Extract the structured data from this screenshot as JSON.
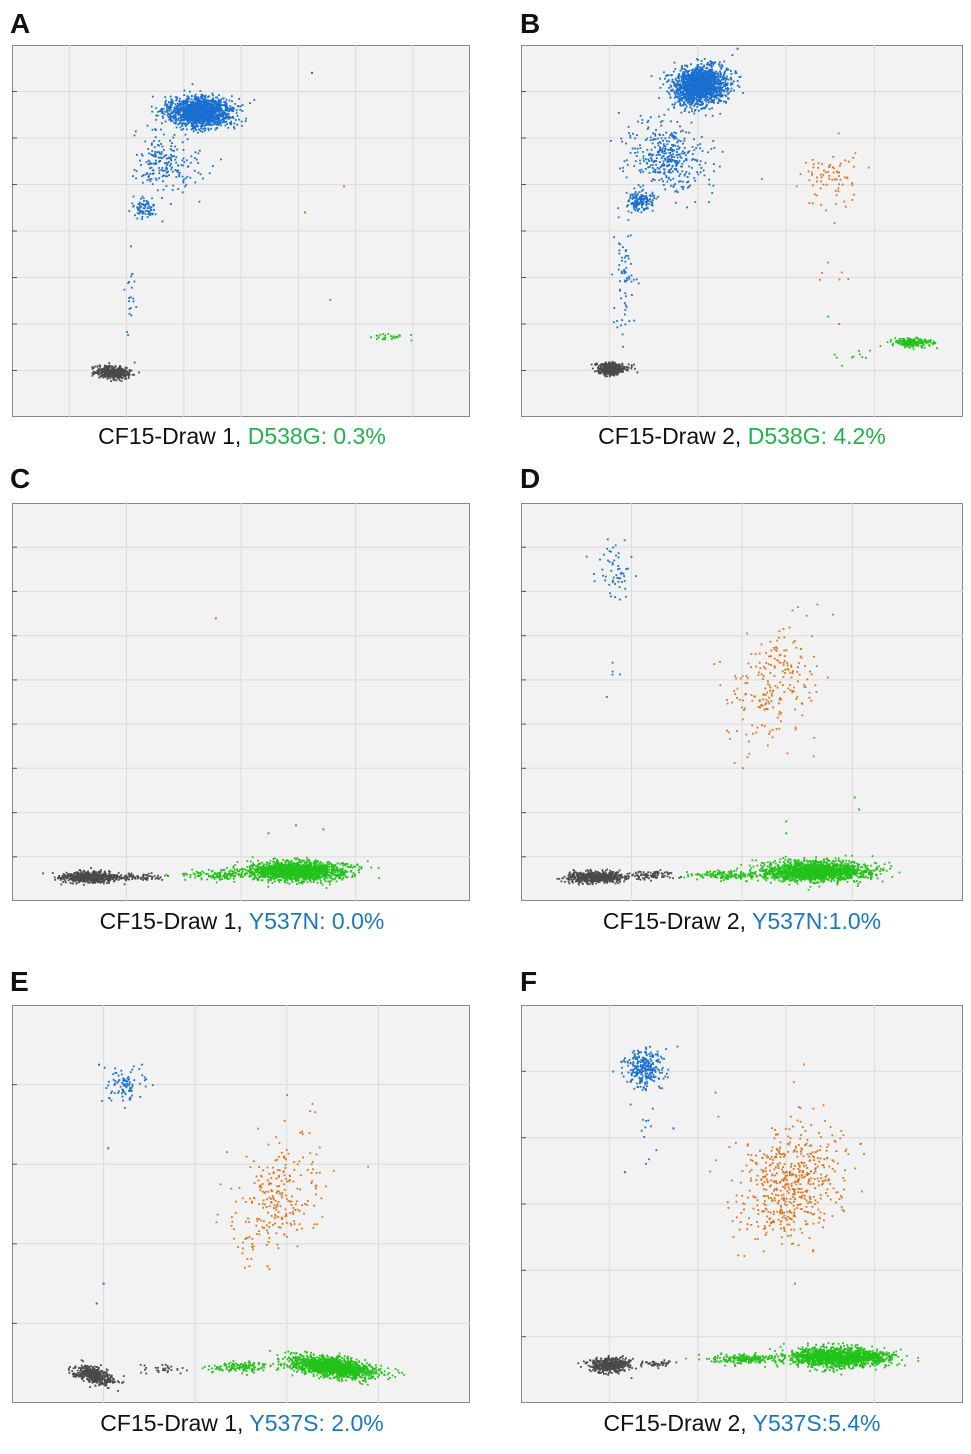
{
  "colors": {
    "neg": "#4a4a4a",
    "blue": "#1a6fd0",
    "orange": "#e07318",
    "green": "#22c21a",
    "caption_green": "#1fb34a",
    "caption_blue": "#1a78c2",
    "plot_bg": "#f2f2f2",
    "grid": "#dcdcdc"
  },
  "chart_data": [
    {
      "id": "A",
      "letter": "A",
      "type": "scatter",
      "caption_prefix": "CF15-Draw 1, ",
      "caption_mutation": "D538G: 0.3%",
      "mutation_color": "green",
      "clusters": [
        {
          "color": "neg",
          "cx": 0.22,
          "cy": 0.12,
          "sx": 0.018,
          "sy": 0.008,
          "n": 450,
          "rot": -0.1
        },
        {
          "color": "blue",
          "cx": 0.41,
          "cy": 0.82,
          "sx": 0.035,
          "sy": 0.02,
          "n": 1500,
          "rot": 0
        },
        {
          "color": "blue",
          "cx": 0.34,
          "cy": 0.68,
          "sx": 0.035,
          "sy": 0.04,
          "n": 200,
          "rot": 0.5
        },
        {
          "color": "blue",
          "cx": 0.29,
          "cy": 0.56,
          "sx": 0.014,
          "sy": 0.015,
          "n": 80,
          "rot": 0
        },
        {
          "color": "blue",
          "cx": 0.26,
          "cy": 0.33,
          "sx": 0.006,
          "sy": 0.06,
          "n": 22,
          "rot": 0
        },
        {
          "color": "green",
          "cx": 0.825,
          "cy": 0.215,
          "sx": 0.022,
          "sy": 0.004,
          "n": 26,
          "rot": 0
        }
      ],
      "singles": [
        {
          "color": "blue",
          "x": 0.655,
          "y": 0.925
        },
        {
          "color": "orange",
          "x": 0.725,
          "y": 0.62
        },
        {
          "color": "orange",
          "x": 0.64,
          "y": 0.55
        },
        {
          "color": "orange",
          "x": 0.695,
          "y": 0.315
        }
      ]
    },
    {
      "id": "B",
      "letter": "B",
      "type": "scatter",
      "caption_prefix": "CF15-Draw 2, ",
      "caption_mutation": "D538G: 4.2%",
      "mutation_color": "green",
      "clusters": [
        {
          "color": "neg",
          "cx": 0.205,
          "cy": 0.13,
          "sx": 0.016,
          "sy": 0.008,
          "n": 450,
          "rot": 0
        },
        {
          "color": "blue",
          "cx": 0.405,
          "cy": 0.89,
          "sx": 0.03,
          "sy": 0.025,
          "n": 1700,
          "rot": 0.3
        },
        {
          "color": "blue",
          "cx": 0.33,
          "cy": 0.7,
          "sx": 0.04,
          "sy": 0.05,
          "n": 380,
          "rot": 0.6
        },
        {
          "color": "blue",
          "cx": 0.27,
          "cy": 0.58,
          "sx": 0.015,
          "sy": 0.014,
          "n": 150,
          "rot": 0
        },
        {
          "color": "blue",
          "cx": 0.235,
          "cy": 0.38,
          "sx": 0.012,
          "sy": 0.08,
          "n": 70,
          "rot": 0
        },
        {
          "color": "orange",
          "cx": 0.7,
          "cy": 0.64,
          "sx": 0.035,
          "sy": 0.045,
          "n": 75,
          "rot": -0.5
        },
        {
          "color": "orange",
          "cx": 0.7,
          "cy": 0.38,
          "sx": 0.025,
          "sy": 0.03,
          "n": 6,
          "rot": 0
        },
        {
          "color": "green",
          "cx": 0.885,
          "cy": 0.2,
          "sx": 0.022,
          "sy": 0.006,
          "n": 180,
          "rot": 0
        },
        {
          "color": "green",
          "cx": 0.76,
          "cy": 0.165,
          "sx": 0.025,
          "sy": 0.008,
          "n": 10,
          "rot": 0
        }
      ],
      "singles": [
        {
          "color": "blue",
          "x": 0.49,
          "y": 0.99
        },
        {
          "color": "orange",
          "x": 0.545,
          "y": 0.64
        },
        {
          "color": "orange",
          "x": 0.72,
          "y": 0.25
        },
        {
          "color": "green",
          "x": 0.695,
          "y": 0.27
        }
      ]
    },
    {
      "id": "C",
      "letter": "C",
      "type": "scatter",
      "caption_prefix": "CF15-Draw 1, ",
      "caption_mutation": "Y537N: 0.0%",
      "mutation_color": "blue",
      "clusters": [
        {
          "color": "neg",
          "cx": 0.17,
          "cy": 0.06,
          "sx": 0.03,
          "sy": 0.007,
          "n": 600,
          "rot": 0
        },
        {
          "color": "neg",
          "cx": 0.27,
          "cy": 0.06,
          "sx": 0.03,
          "sy": 0.004,
          "n": 80,
          "rot": 0
        },
        {
          "color": "green",
          "cx": 0.62,
          "cy": 0.075,
          "sx": 0.055,
          "sy": 0.012,
          "n": 1600,
          "rot": 0
        },
        {
          "color": "green",
          "cx": 0.45,
          "cy": 0.065,
          "sx": 0.04,
          "sy": 0.006,
          "n": 120,
          "rot": 0
        }
      ],
      "singles": [
        {
          "color": "orange",
          "x": 0.445,
          "y": 0.71
        },
        {
          "color": "green",
          "x": 0.62,
          "y": 0.19
        },
        {
          "color": "green",
          "x": 0.68,
          "y": 0.18
        },
        {
          "color": "green",
          "x": 0.56,
          "y": 0.17
        }
      ]
    },
    {
      "id": "D",
      "letter": "D",
      "type": "scatter",
      "caption_prefix": "CF15-Draw 2, ",
      "caption_mutation": "Y537N:1.0%",
      "mutation_color": "blue",
      "clusters": [
        {
          "color": "neg",
          "cx": 0.17,
          "cy": 0.06,
          "sx": 0.03,
          "sy": 0.007,
          "n": 600,
          "rot": 0
        },
        {
          "color": "neg",
          "cx": 0.3,
          "cy": 0.065,
          "sx": 0.025,
          "sy": 0.005,
          "n": 90,
          "rot": 0
        },
        {
          "color": "green",
          "cx": 0.67,
          "cy": 0.075,
          "sx": 0.06,
          "sy": 0.012,
          "n": 1700,
          "rot": 0
        },
        {
          "color": "green",
          "cx": 0.47,
          "cy": 0.065,
          "sx": 0.045,
          "sy": 0.006,
          "n": 150,
          "rot": 0
        },
        {
          "color": "blue",
          "cx": 0.215,
          "cy": 0.83,
          "sx": 0.025,
          "sy": 0.04,
          "n": 55,
          "rot": 0
        },
        {
          "color": "blue",
          "cx": 0.215,
          "cy": 0.58,
          "sx": 0.015,
          "sy": 0.08,
          "n": 5,
          "rot": 0
        },
        {
          "color": "orange",
          "cx": 0.57,
          "cy": 0.54,
          "sx": 0.05,
          "sy": 0.08,
          "n": 220,
          "rot": -0.25
        }
      ],
      "singles": [
        {
          "color": "green",
          "x": 0.755,
          "y": 0.26
        },
        {
          "color": "green",
          "x": 0.765,
          "y": 0.23
        },
        {
          "color": "green",
          "x": 0.6,
          "y": 0.2
        },
        {
          "color": "green",
          "x": 0.6,
          "y": 0.17
        }
      ]
    },
    {
      "id": "E",
      "letter": "E",
      "type": "scatter",
      "caption_prefix": "CF15-Draw 1, ",
      "caption_mutation": "Y537S: 2.0%",
      "mutation_color": "blue",
      "clusters": [
        {
          "color": "neg",
          "cx": 0.18,
          "cy": 0.07,
          "sx": 0.022,
          "sy": 0.01,
          "n": 450,
          "rot": -0.35
        },
        {
          "color": "neg",
          "cx": 0.33,
          "cy": 0.085,
          "sx": 0.03,
          "sy": 0.006,
          "n": 30,
          "rot": 0
        },
        {
          "color": "green",
          "cx": 0.7,
          "cy": 0.09,
          "sx": 0.045,
          "sy": 0.012,
          "n": 1500,
          "rot": -0.15
        },
        {
          "color": "green",
          "cx": 0.5,
          "cy": 0.09,
          "sx": 0.035,
          "sy": 0.006,
          "n": 130,
          "rot": 0
        },
        {
          "color": "blue",
          "cx": 0.245,
          "cy": 0.8,
          "sx": 0.02,
          "sy": 0.022,
          "n": 90,
          "rot": 0
        },
        {
          "color": "orange",
          "cx": 0.575,
          "cy": 0.5,
          "sx": 0.045,
          "sy": 0.08,
          "n": 260,
          "rot": -0.35
        }
      ],
      "singles": [
        {
          "color": "blue",
          "x": 0.19,
          "y": 0.85
        },
        {
          "color": "blue",
          "x": 0.21,
          "y": 0.64
        },
        {
          "color": "blue",
          "x": 0.2,
          "y": 0.3
        },
        {
          "color": "blue",
          "x": 0.185,
          "y": 0.25
        }
      ]
    },
    {
      "id": "F",
      "letter": "F",
      "type": "scatter",
      "caption_prefix": "CF15-Draw 2, ",
      "caption_mutation": "Y537S:5.4%",
      "mutation_color": "blue",
      "clusters": [
        {
          "color": "neg",
          "cx": 0.2,
          "cy": 0.095,
          "sx": 0.022,
          "sy": 0.009,
          "n": 450,
          "rot": 0
        },
        {
          "color": "neg",
          "cx": 0.3,
          "cy": 0.1,
          "sx": 0.03,
          "sy": 0.005,
          "n": 50,
          "rot": 0
        },
        {
          "color": "green",
          "cx": 0.72,
          "cy": 0.115,
          "sx": 0.055,
          "sy": 0.012,
          "n": 1500,
          "rot": 0
        },
        {
          "color": "green",
          "cx": 0.5,
          "cy": 0.11,
          "sx": 0.04,
          "sy": 0.006,
          "n": 200,
          "rot": 0
        },
        {
          "color": "blue",
          "cx": 0.28,
          "cy": 0.84,
          "sx": 0.022,
          "sy": 0.025,
          "n": 260,
          "rot": 0
        },
        {
          "color": "blue",
          "cx": 0.29,
          "cy": 0.7,
          "sx": 0.015,
          "sy": 0.05,
          "n": 14,
          "rot": 0
        },
        {
          "color": "orange",
          "cx": 0.61,
          "cy": 0.55,
          "sx": 0.055,
          "sy": 0.08,
          "n": 550,
          "rot": -0.35
        }
      ],
      "singles": [
        {
          "color": "blue",
          "x": 0.235,
          "y": 0.58
        },
        {
          "color": "blue",
          "x": 0.345,
          "y": 0.69
        },
        {
          "color": "orange",
          "x": 0.44,
          "y": 0.78
        },
        {
          "color": "orange",
          "x": 0.62,
          "y": 0.3
        }
      ]
    }
  ]
}
